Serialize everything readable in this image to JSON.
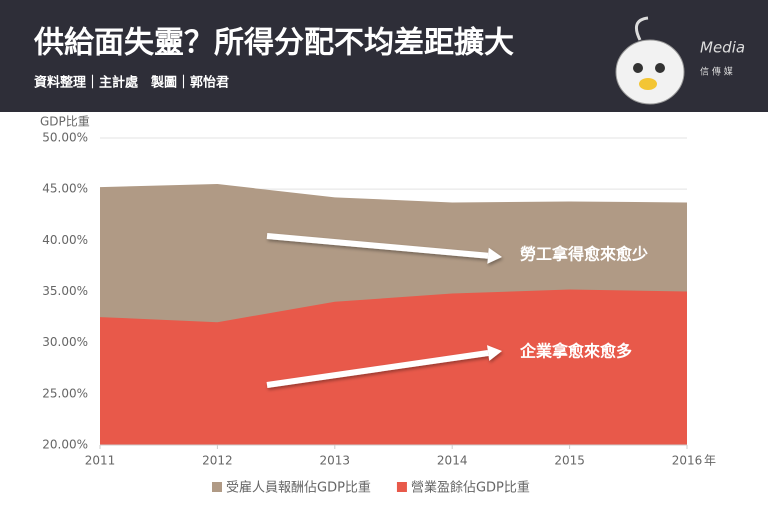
{
  "header": {
    "title": "供給面失靈？所得分配不均差距擴大",
    "subtitle": "資料整理｜主計處　製圖｜郭怡君",
    "logo": "Media",
    "logo_sub": "信 傳 媒"
  },
  "chart_data": {
    "type": "area",
    "ylabel": "GDP比重",
    "xlabel": "年",
    "x": [
      2011,
      2012,
      2013,
      2014,
      2015,
      2016
    ],
    "xlim": [
      2011,
      2016
    ],
    "xticks": [
      2011,
      2012,
      2013,
      2014,
      2015,
      2016
    ],
    "ylim": [
      20,
      50
    ],
    "yticks": [
      {
        "value": 20,
        "label": "20.00%"
      },
      {
        "value": 25,
        "label": "25.00%"
      },
      {
        "value": 30,
        "label": "30.00%"
      },
      {
        "value": 35,
        "label": "35.00%"
      },
      {
        "value": 40,
        "label": "40.00%"
      },
      {
        "value": 45,
        "label": "45.00%"
      },
      {
        "value": 50,
        "label": "50.00%"
      }
    ],
    "grid": true,
    "series": [
      {
        "name": "受雇人員報酬佔GDP比重",
        "color": "#b09a85",
        "values": [
          45.2,
          45.5,
          44.2,
          43.7,
          43.8,
          43.7
        ]
      },
      {
        "name": "營業盈餘佔GDP比重",
        "color": "#e8594a",
        "values": [
          32.5,
          32.0,
          34.0,
          34.8,
          35.2,
          35.0
        ]
      }
    ],
    "annotations": [
      "勞工拿得愈來愈少",
      "企業拿愈來愈多"
    ],
    "legend": "bottom"
  }
}
